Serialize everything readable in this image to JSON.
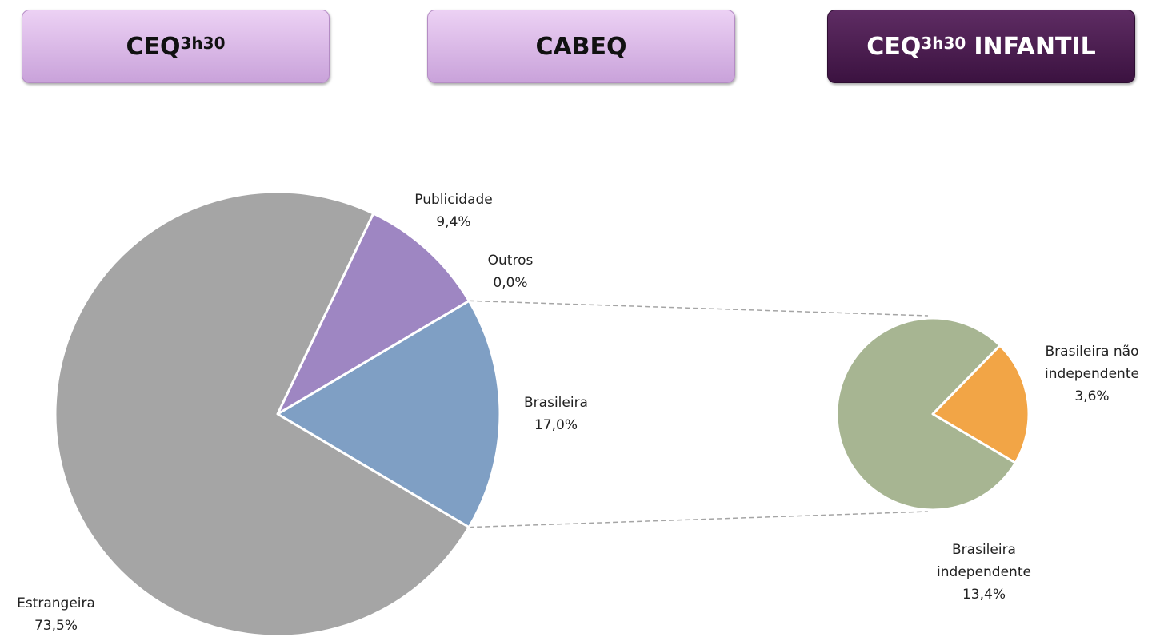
{
  "tabs": [
    {
      "text": "CEQ",
      "sup": "3h30"
    },
    {
      "text": "CABEQ"
    },
    {
      "text": "CEQ",
      "sup": "3h30",
      "suffix": "INFANTIL"
    }
  ],
  "active_tab": 2,
  "chart_data": {
    "type": "pie",
    "categories": [
      "Brasileira",
      "Outros",
      "Publicidade",
      "Estrangeira"
    ],
    "values": [
      17.0,
      0.0,
      9.4,
      73.5
    ],
    "value_labels": [
      "17,0%",
      "0,0%",
      "9,4%",
      "73,5%"
    ],
    "colors": [
      "#7f9fc4",
      "#a5a5a5",
      "#9e86c2",
      "#a5a5a5"
    ],
    "secondary": {
      "categories": [
        "Brasileira não independente",
        "Brasileira independente"
      ],
      "values": [
        3.6,
        13.4
      ],
      "value_labels": [
        "3,6%",
        "13,4%"
      ],
      "colors": [
        "#f2a546",
        "#a7b592"
      ]
    }
  }
}
